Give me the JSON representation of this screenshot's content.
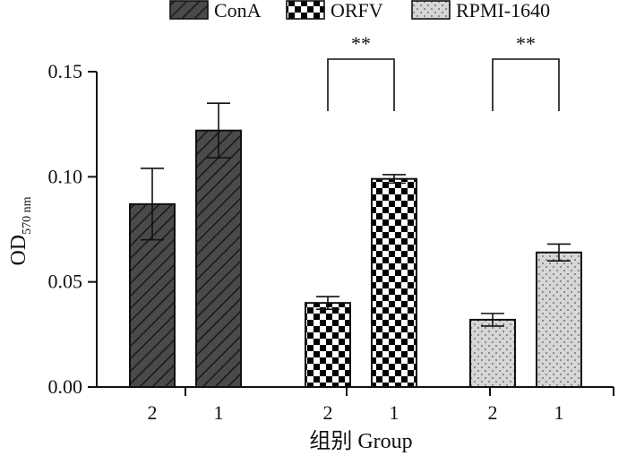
{
  "chart_data": {
    "type": "bar",
    "ylabel": "OD",
    "ylabel_sub": "570 nm",
    "xlabel": "组别 Group",
    "ylim": [
      0,
      0.15
    ],
    "yticks": [
      "0.00",
      "0.05",
      "0.10",
      "0.15"
    ],
    "legend_position": "top",
    "legend": [
      {
        "name": "ConA",
        "pattern": "hatch",
        "color": "#4a4a4a"
      },
      {
        "name": "ORFV",
        "pattern": "checker",
        "color": "#000000"
      },
      {
        "name": "RPMI-1640",
        "pattern": "dots",
        "color": "#d6d6d6"
      }
    ],
    "series": [
      {
        "name": "ConA",
        "pattern": "hatch",
        "categories": [
          "2",
          "1"
        ],
        "values": [
          0.087,
          0.122
        ],
        "errors": [
          0.017,
          0.013
        ]
      },
      {
        "name": "ORFV",
        "pattern": "checker",
        "categories": [
          "2",
          "1"
        ],
        "values": [
          0.04,
          0.099
        ],
        "errors": [
          0.003,
          0.002
        ]
      },
      {
        "name": "RPMI-1640",
        "pattern": "dots",
        "categories": [
          "2",
          "1"
        ],
        "values": [
          0.032,
          0.064
        ],
        "errors": [
          0.003,
          0.004
        ]
      }
    ],
    "significance": [
      {
        "group": "ORFV",
        "label": "**"
      },
      {
        "group": "RPMI-1640",
        "label": "**"
      }
    ]
  }
}
